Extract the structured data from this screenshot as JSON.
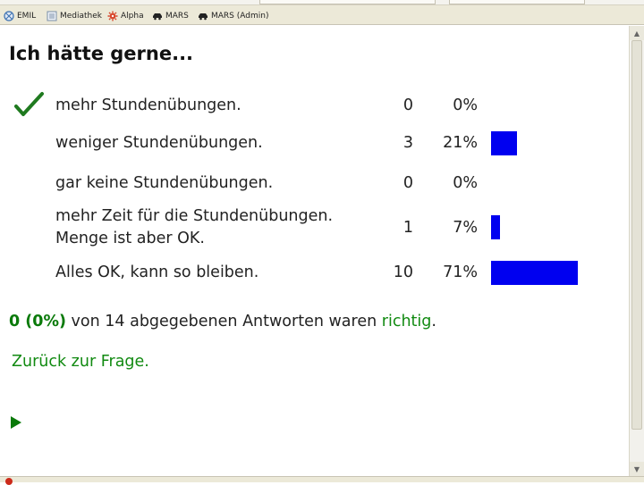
{
  "bookmarks": [
    {
      "label": "EMIL",
      "icon": "globe-icon"
    },
    {
      "label": "Mediathek",
      "icon": "page-icon"
    },
    {
      "label": "Alpha",
      "icon": "gear-icon"
    },
    {
      "label": "MARS",
      "icon": "car-icon"
    },
    {
      "label": "MARS (Admin)",
      "icon": "car-icon"
    }
  ],
  "question": {
    "title": "Ich hätte gerne..."
  },
  "results": [
    {
      "label": "mehr Stundenübungen.",
      "count": "0",
      "percent": "0%",
      "share": 0,
      "correct_mark": true
    },
    {
      "label": "weniger Stundenübungen.",
      "count": "3",
      "percent": "21%",
      "share": 21,
      "correct_mark": false
    },
    {
      "label": "gar keine Stundenübungen.",
      "count": "0",
      "percent": "0%",
      "share": 0,
      "correct_mark": false
    },
    {
      "label": "mehr Zeit für die Stundenübungen.",
      "label_line2": "Menge ist aber OK.",
      "count": "1",
      "percent": "7%",
      "share": 7,
      "correct_mark": false
    },
    {
      "label": "Alles OK, kann so bleiben.",
      "count": "10",
      "percent": "71%",
      "share": 71,
      "correct_mark": false
    }
  ],
  "summary": {
    "score": "0 (0%)",
    "text": " von 14 abgegebenen Antworten waren ",
    "correct_word": "richtig",
    "end": "."
  },
  "back_link": "Zurück zur Frage.",
  "colors": {
    "bar": "#0000f0",
    "accent_green": "#118a11",
    "check_green": "#1f7a1f"
  }
}
